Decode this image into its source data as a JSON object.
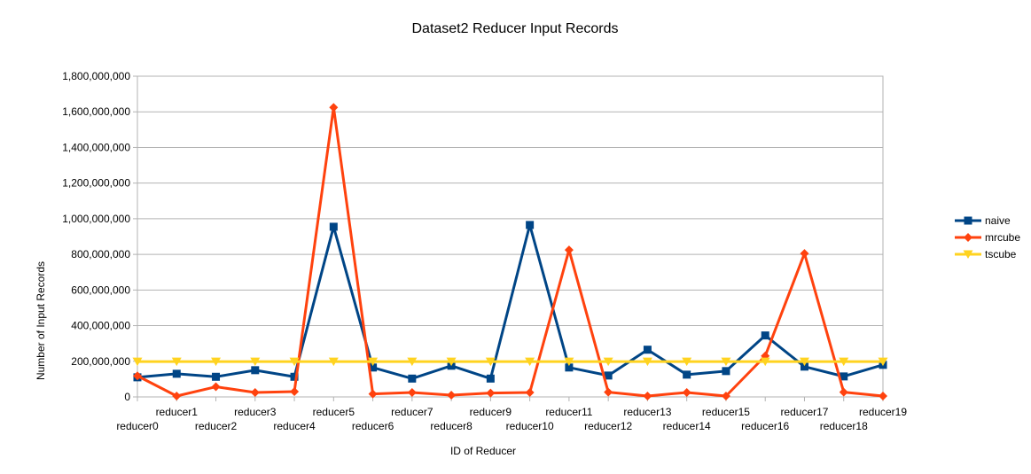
{
  "chart_data": {
    "type": "line",
    "title": "Dataset2 Reducer Input Records",
    "xlabel": "ID of Reducer",
    "ylabel": "Number of Input Records",
    "ylim": [
      0,
      1800000000
    ],
    "yticks": [
      0,
      200000000,
      400000000,
      600000000,
      800000000,
      1000000000,
      1200000000,
      1400000000,
      1600000000,
      1800000000
    ],
    "ytick_labels": [
      "0",
      "200,000,000",
      "400,000,000",
      "600,000,000",
      "800,000,000",
      "1,000,000,000",
      "1,200,000,000",
      "1,400,000,000",
      "1,600,000,000",
      "1,800,000,000"
    ],
    "grid": "horizontal",
    "legend": "right",
    "categories": [
      "reducer0",
      "reducer1",
      "reducer2",
      "reducer3",
      "reducer4",
      "reducer5",
      "reducer6",
      "reducer7",
      "reducer8",
      "reducer9",
      "reducer10",
      "reducer11",
      "reducer12",
      "reducer13",
      "reducer14",
      "reducer15",
      "reducer16",
      "reducer17",
      "reducer18",
      "reducer19"
    ],
    "series": [
      {
        "name": "naive",
        "color": "#004586",
        "marker": "square",
        "values": [
          110000000,
          130000000,
          113000000,
          150000000,
          113000000,
          955000000,
          165000000,
          103000000,
          175000000,
          103000000,
          965000000,
          165000000,
          120000000,
          265000000,
          125000000,
          145000000,
          345000000,
          170000000,
          115000000,
          180000000
        ]
      },
      {
        "name": "mrcube",
        "color": "#ff420e",
        "marker": "diamond",
        "values": [
          118000000,
          5000000,
          57000000,
          25000000,
          30000000,
          1625000000,
          17000000,
          25000000,
          10000000,
          22000000,
          25000000,
          825000000,
          27000000,
          5000000,
          25000000,
          5000000,
          230000000,
          805000000,
          27000000,
          5000000
        ]
      },
      {
        "name": "tscube",
        "color": "#ffd320",
        "marker": "triangle-down",
        "values": [
          198000000,
          198000000,
          198000000,
          198000000,
          198000000,
          198000000,
          198000000,
          198000000,
          198000000,
          198000000,
          198000000,
          198000000,
          198000000,
          198000000,
          198000000,
          198000000,
          198000000,
          198000000,
          198000000,
          198000000
        ]
      }
    ]
  }
}
